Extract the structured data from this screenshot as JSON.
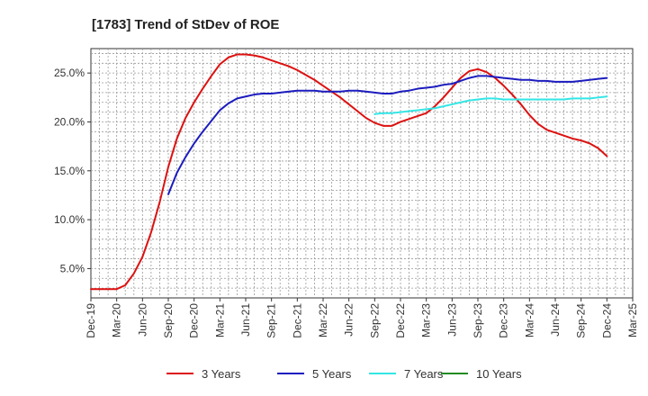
{
  "chart_data": {
    "type": "line",
    "title": "[1783]  Trend of StDev of ROE",
    "xlabel": "",
    "ylabel": "",
    "ylim": [
      2.0,
      27.5
    ],
    "xlim": [
      "2019-12",
      "2025-03"
    ],
    "y_ticks": [
      {
        "value": 5,
        "label": "5.0%"
      },
      {
        "value": 10,
        "label": "10.0%"
      },
      {
        "value": 15,
        "label": "15.0%"
      },
      {
        "value": 20,
        "label": "20.0%"
      },
      {
        "value": 25,
        "label": "25.0%"
      }
    ],
    "x_ticks": [
      {
        "value": "2019-12",
        "label": "Dec-19"
      },
      {
        "value": "2020-03",
        "label": "Mar-20"
      },
      {
        "value": "2020-06",
        "label": "Jun-20"
      },
      {
        "value": "2020-09",
        "label": "Sep-20"
      },
      {
        "value": "2020-12",
        "label": "Dec-20"
      },
      {
        "value": "2021-03",
        "label": "Mar-21"
      },
      {
        "value": "2021-06",
        "label": "Jun-21"
      },
      {
        "value": "2021-09",
        "label": "Sep-21"
      },
      {
        "value": "2021-12",
        "label": "Dec-21"
      },
      {
        "value": "2022-03",
        "label": "Mar-22"
      },
      {
        "value": "2022-06",
        "label": "Jun-22"
      },
      {
        "value": "2022-09",
        "label": "Sep-22"
      },
      {
        "value": "2022-12",
        "label": "Dec-22"
      },
      {
        "value": "2023-03",
        "label": "Mar-23"
      },
      {
        "value": "2023-06",
        "label": "Jun-23"
      },
      {
        "value": "2023-09",
        "label": "Sep-23"
      },
      {
        "value": "2023-12",
        "label": "Dec-23"
      },
      {
        "value": "2024-03",
        "label": "Mar-24"
      },
      {
        "value": "2024-06",
        "label": "Jun-24"
      },
      {
        "value": "2024-09",
        "label": "Sep-24"
      },
      {
        "value": "2024-12",
        "label": "Dec-24"
      },
      {
        "value": "2025-03",
        "label": "Mar-25"
      }
    ],
    "grid": true,
    "legend_position": "bottom",
    "series": [
      {
        "name": "3 Years",
        "color": "#dd1111",
        "x": [
          "2019-12",
          "2020-01",
          "2020-02",
          "2020-03",
          "2020-04",
          "2020-05",
          "2020-06",
          "2020-07",
          "2020-08",
          "2020-09",
          "2020-10",
          "2020-11",
          "2020-12",
          "2021-01",
          "2021-02",
          "2021-03",
          "2021-04",
          "2021-05",
          "2021-06",
          "2021-07",
          "2021-08",
          "2021-09",
          "2021-10",
          "2021-11",
          "2021-12",
          "2022-01",
          "2022-02",
          "2022-03",
          "2022-04",
          "2022-05",
          "2022-06",
          "2022-07",
          "2022-08",
          "2022-09",
          "2022-10",
          "2022-11",
          "2022-12",
          "2023-01",
          "2023-02",
          "2023-03",
          "2023-04",
          "2023-05",
          "2023-06",
          "2023-07",
          "2023-08",
          "2023-09",
          "2023-10",
          "2023-11",
          "2023-12",
          "2024-01",
          "2024-02",
          "2024-03",
          "2024-04",
          "2024-05",
          "2024-06",
          "2024-07",
          "2024-08",
          "2024-09",
          "2024-10",
          "2024-11",
          "2024-12"
        ],
        "values": [
          2.9,
          2.9,
          2.9,
          2.9,
          3.3,
          4.5,
          6.2,
          8.7,
          11.8,
          15.4,
          18.3,
          20.4,
          22.0,
          23.4,
          24.7,
          25.9,
          26.6,
          26.9,
          26.9,
          26.8,
          26.6,
          26.3,
          26.0,
          25.7,
          25.3,
          24.8,
          24.3,
          23.7,
          23.1,
          22.5,
          21.8,
          21.1,
          20.4,
          19.9,
          19.6,
          19.6,
          20.0,
          20.3,
          20.6,
          20.9,
          21.6,
          22.5,
          23.5,
          24.5,
          25.2,
          25.4,
          25.1,
          24.5,
          23.7,
          22.8,
          21.8,
          20.7,
          19.8,
          19.2,
          18.9,
          18.6,
          18.3,
          18.1,
          17.8,
          17.3,
          16.5
        ]
      },
      {
        "name": "5 Years",
        "color": "#1c1cbf",
        "x": [
          "2020-09",
          "2020-10",
          "2020-11",
          "2020-12",
          "2021-01",
          "2021-02",
          "2021-03",
          "2021-04",
          "2021-05",
          "2021-06",
          "2021-07",
          "2021-08",
          "2021-09",
          "2021-10",
          "2021-11",
          "2021-12",
          "2022-01",
          "2022-02",
          "2022-03",
          "2022-04",
          "2022-05",
          "2022-06",
          "2022-07",
          "2022-08",
          "2022-09",
          "2022-10",
          "2022-11",
          "2022-12",
          "2023-01",
          "2023-02",
          "2023-03",
          "2023-04",
          "2023-05",
          "2023-06",
          "2023-07",
          "2023-08",
          "2023-09",
          "2023-10",
          "2023-11",
          "2023-12",
          "2024-01",
          "2024-02",
          "2024-03",
          "2024-04",
          "2024-05",
          "2024-06",
          "2024-07",
          "2024-08",
          "2024-09",
          "2024-10",
          "2024-11",
          "2024-12"
        ],
        "values": [
          12.6,
          14.8,
          16.4,
          17.8,
          19.0,
          20.1,
          21.2,
          21.9,
          22.4,
          22.6,
          22.8,
          22.9,
          22.9,
          23.0,
          23.1,
          23.2,
          23.2,
          23.2,
          23.1,
          23.1,
          23.1,
          23.2,
          23.2,
          23.1,
          23.0,
          22.9,
          22.9,
          23.1,
          23.2,
          23.4,
          23.5,
          23.6,
          23.8,
          23.9,
          24.2,
          24.5,
          24.7,
          24.7,
          24.6,
          24.5,
          24.4,
          24.3,
          24.3,
          24.2,
          24.2,
          24.1,
          24.1,
          24.1,
          24.2,
          24.3,
          24.4,
          24.5
        ]
      },
      {
        "name": "7 Years",
        "color": "#33e6e6",
        "x": [
          "2022-09",
          "2022-10",
          "2022-11",
          "2022-12",
          "2023-01",
          "2023-02",
          "2023-03",
          "2023-04",
          "2023-05",
          "2023-06",
          "2023-07",
          "2023-08",
          "2023-09",
          "2023-10",
          "2023-11",
          "2023-12",
          "2024-01",
          "2024-02",
          "2024-03",
          "2024-04",
          "2024-05",
          "2024-06",
          "2024-07",
          "2024-08",
          "2024-09",
          "2024-10",
          "2024-11",
          "2024-12"
        ],
        "values": [
          20.8,
          20.9,
          20.9,
          21.0,
          21.1,
          21.2,
          21.3,
          21.4,
          21.6,
          21.8,
          22.0,
          22.2,
          22.3,
          22.4,
          22.4,
          22.3,
          22.3,
          22.3,
          22.3,
          22.3,
          22.3,
          22.3,
          22.3,
          22.4,
          22.4,
          22.4,
          22.5,
          22.6
        ]
      },
      {
        "name": "10 Years",
        "color": "#228b22",
        "x": [],
        "values": []
      }
    ]
  }
}
